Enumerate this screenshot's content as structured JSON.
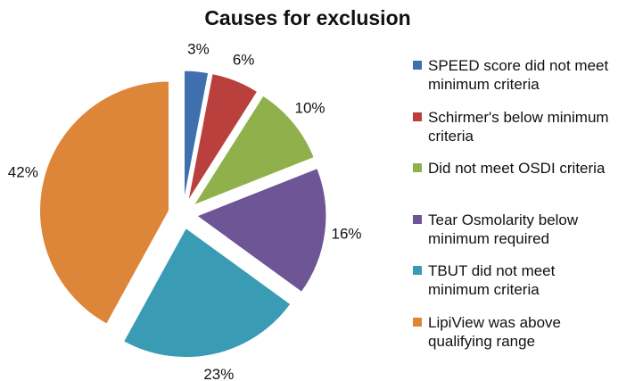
{
  "chart_data": {
    "type": "pie",
    "title": "Causes for exclusion",
    "categories": [
      "SPEED score did not meet minimum criteria",
      "Schirmer's below minimum criteria",
      "Did not meet OSDI criteria",
      "Tear Osmolarity below minimum required",
      "TBUT did not meet minimum criteria",
      "LipiView was above qualifying range"
    ],
    "values": [
      3,
      6,
      10,
      16,
      23,
      42
    ],
    "value_labels": [
      "3%",
      "6%",
      "10%",
      "16%",
      "23%",
      "42%"
    ],
    "colors": [
      "#3f6fae",
      "#b9403d",
      "#8fb04a",
      "#6e5596",
      "#3a9bb5",
      "#dd8539"
    ],
    "legend": "right"
  }
}
